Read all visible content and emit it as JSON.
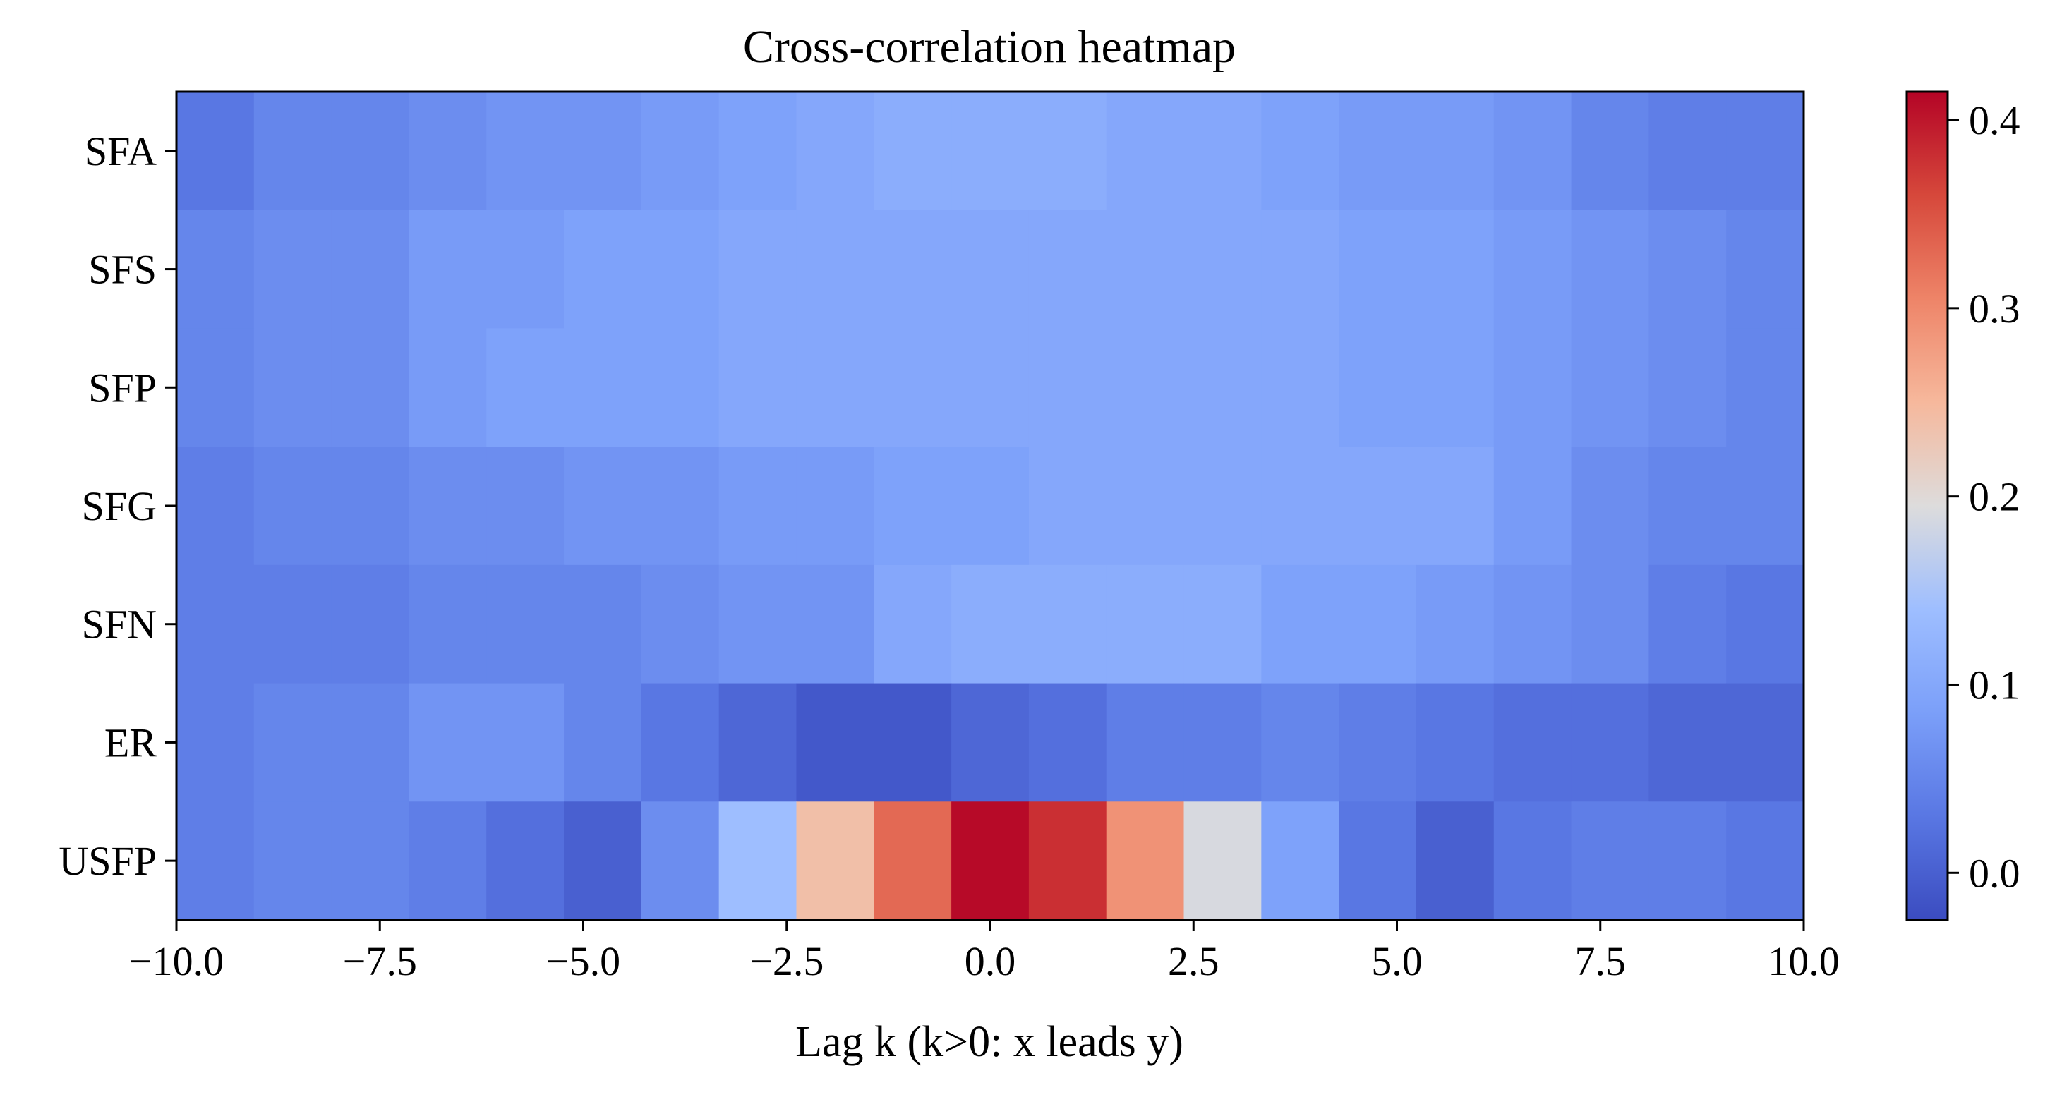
{
  "chart_data": {
    "type": "heatmap",
    "title": "Cross-correlation heatmap",
    "xlabel": "Lag k (k>0: x leads y)",
    "ylabel": "",
    "xlim": [
      -10.0,
      10.0
    ],
    "x_ticks": [
      -10.0,
      -7.5,
      -5.0,
      -2.5,
      0.0,
      2.5,
      5.0,
      7.5,
      10.0
    ],
    "x_tick_labels": [
      "−10.0",
      "−7.5",
      "−5.0",
      "−2.5",
      "0.0",
      "2.5",
      "5.0",
      "7.5",
      "10.0"
    ],
    "lags": [
      -10,
      -9,
      -8,
      -7,
      -6,
      -5,
      -4,
      -3,
      -2,
      -1,
      0,
      1,
      2,
      3,
      4,
      5,
      6,
      7,
      8,
      9,
      10
    ],
    "rows": [
      "SFA",
      "SFS",
      "SFP",
      "SFG",
      "SFN",
      "ER",
      "USFP"
    ],
    "values": [
      [
        0.03,
        0.05,
        0.05,
        0.06,
        0.07,
        0.07,
        0.08,
        0.09,
        0.1,
        0.11,
        0.11,
        0.11,
        0.1,
        0.1,
        0.09,
        0.08,
        0.08,
        0.07,
        0.05,
        0.04,
        0.04
      ],
      [
        0.05,
        0.06,
        0.06,
        0.08,
        0.08,
        0.09,
        0.09,
        0.1,
        0.1,
        0.1,
        0.1,
        0.1,
        0.1,
        0.1,
        0.1,
        0.09,
        0.09,
        0.08,
        0.07,
        0.06,
        0.05
      ],
      [
        0.05,
        0.06,
        0.06,
        0.08,
        0.09,
        0.09,
        0.09,
        0.1,
        0.1,
        0.1,
        0.1,
        0.1,
        0.1,
        0.1,
        0.1,
        0.09,
        0.09,
        0.08,
        0.07,
        0.06,
        0.05
      ],
      [
        0.04,
        0.05,
        0.05,
        0.06,
        0.06,
        0.07,
        0.07,
        0.08,
        0.08,
        0.09,
        0.09,
        0.1,
        0.1,
        0.1,
        0.1,
        0.1,
        0.1,
        0.08,
        0.06,
        0.05,
        0.05
      ],
      [
        0.04,
        0.04,
        0.04,
        0.05,
        0.05,
        0.05,
        0.06,
        0.07,
        0.07,
        0.1,
        0.11,
        0.11,
        0.11,
        0.11,
        0.09,
        0.09,
        0.08,
        0.07,
        0.06,
        0.04,
        0.03
      ],
      [
        0.04,
        0.05,
        0.05,
        0.07,
        0.07,
        0.05,
        0.03,
        0.01,
        -0.01,
        -0.01,
        0.01,
        0.02,
        0.04,
        0.04,
        0.05,
        0.04,
        0.03,
        0.02,
        0.02,
        0.01,
        0.01
      ],
      [
        0.04,
        0.05,
        0.05,
        0.04,
        0.02,
        0.0,
        0.06,
        0.14,
        0.24,
        0.33,
        0.41,
        0.38,
        0.29,
        0.19,
        0.09,
        0.03,
        0.0,
        0.03,
        0.04,
        0.04,
        0.03
      ]
    ],
    "colormap": "coolwarm",
    "vmin": -0.025,
    "vmax": 0.415,
    "colorbar_ticks": [
      0.0,
      0.1,
      0.2,
      0.3,
      0.4
    ],
    "colorbar_tick_labels": [
      "0.0",
      "0.1",
      "0.2",
      "0.3",
      "0.4"
    ]
  }
}
